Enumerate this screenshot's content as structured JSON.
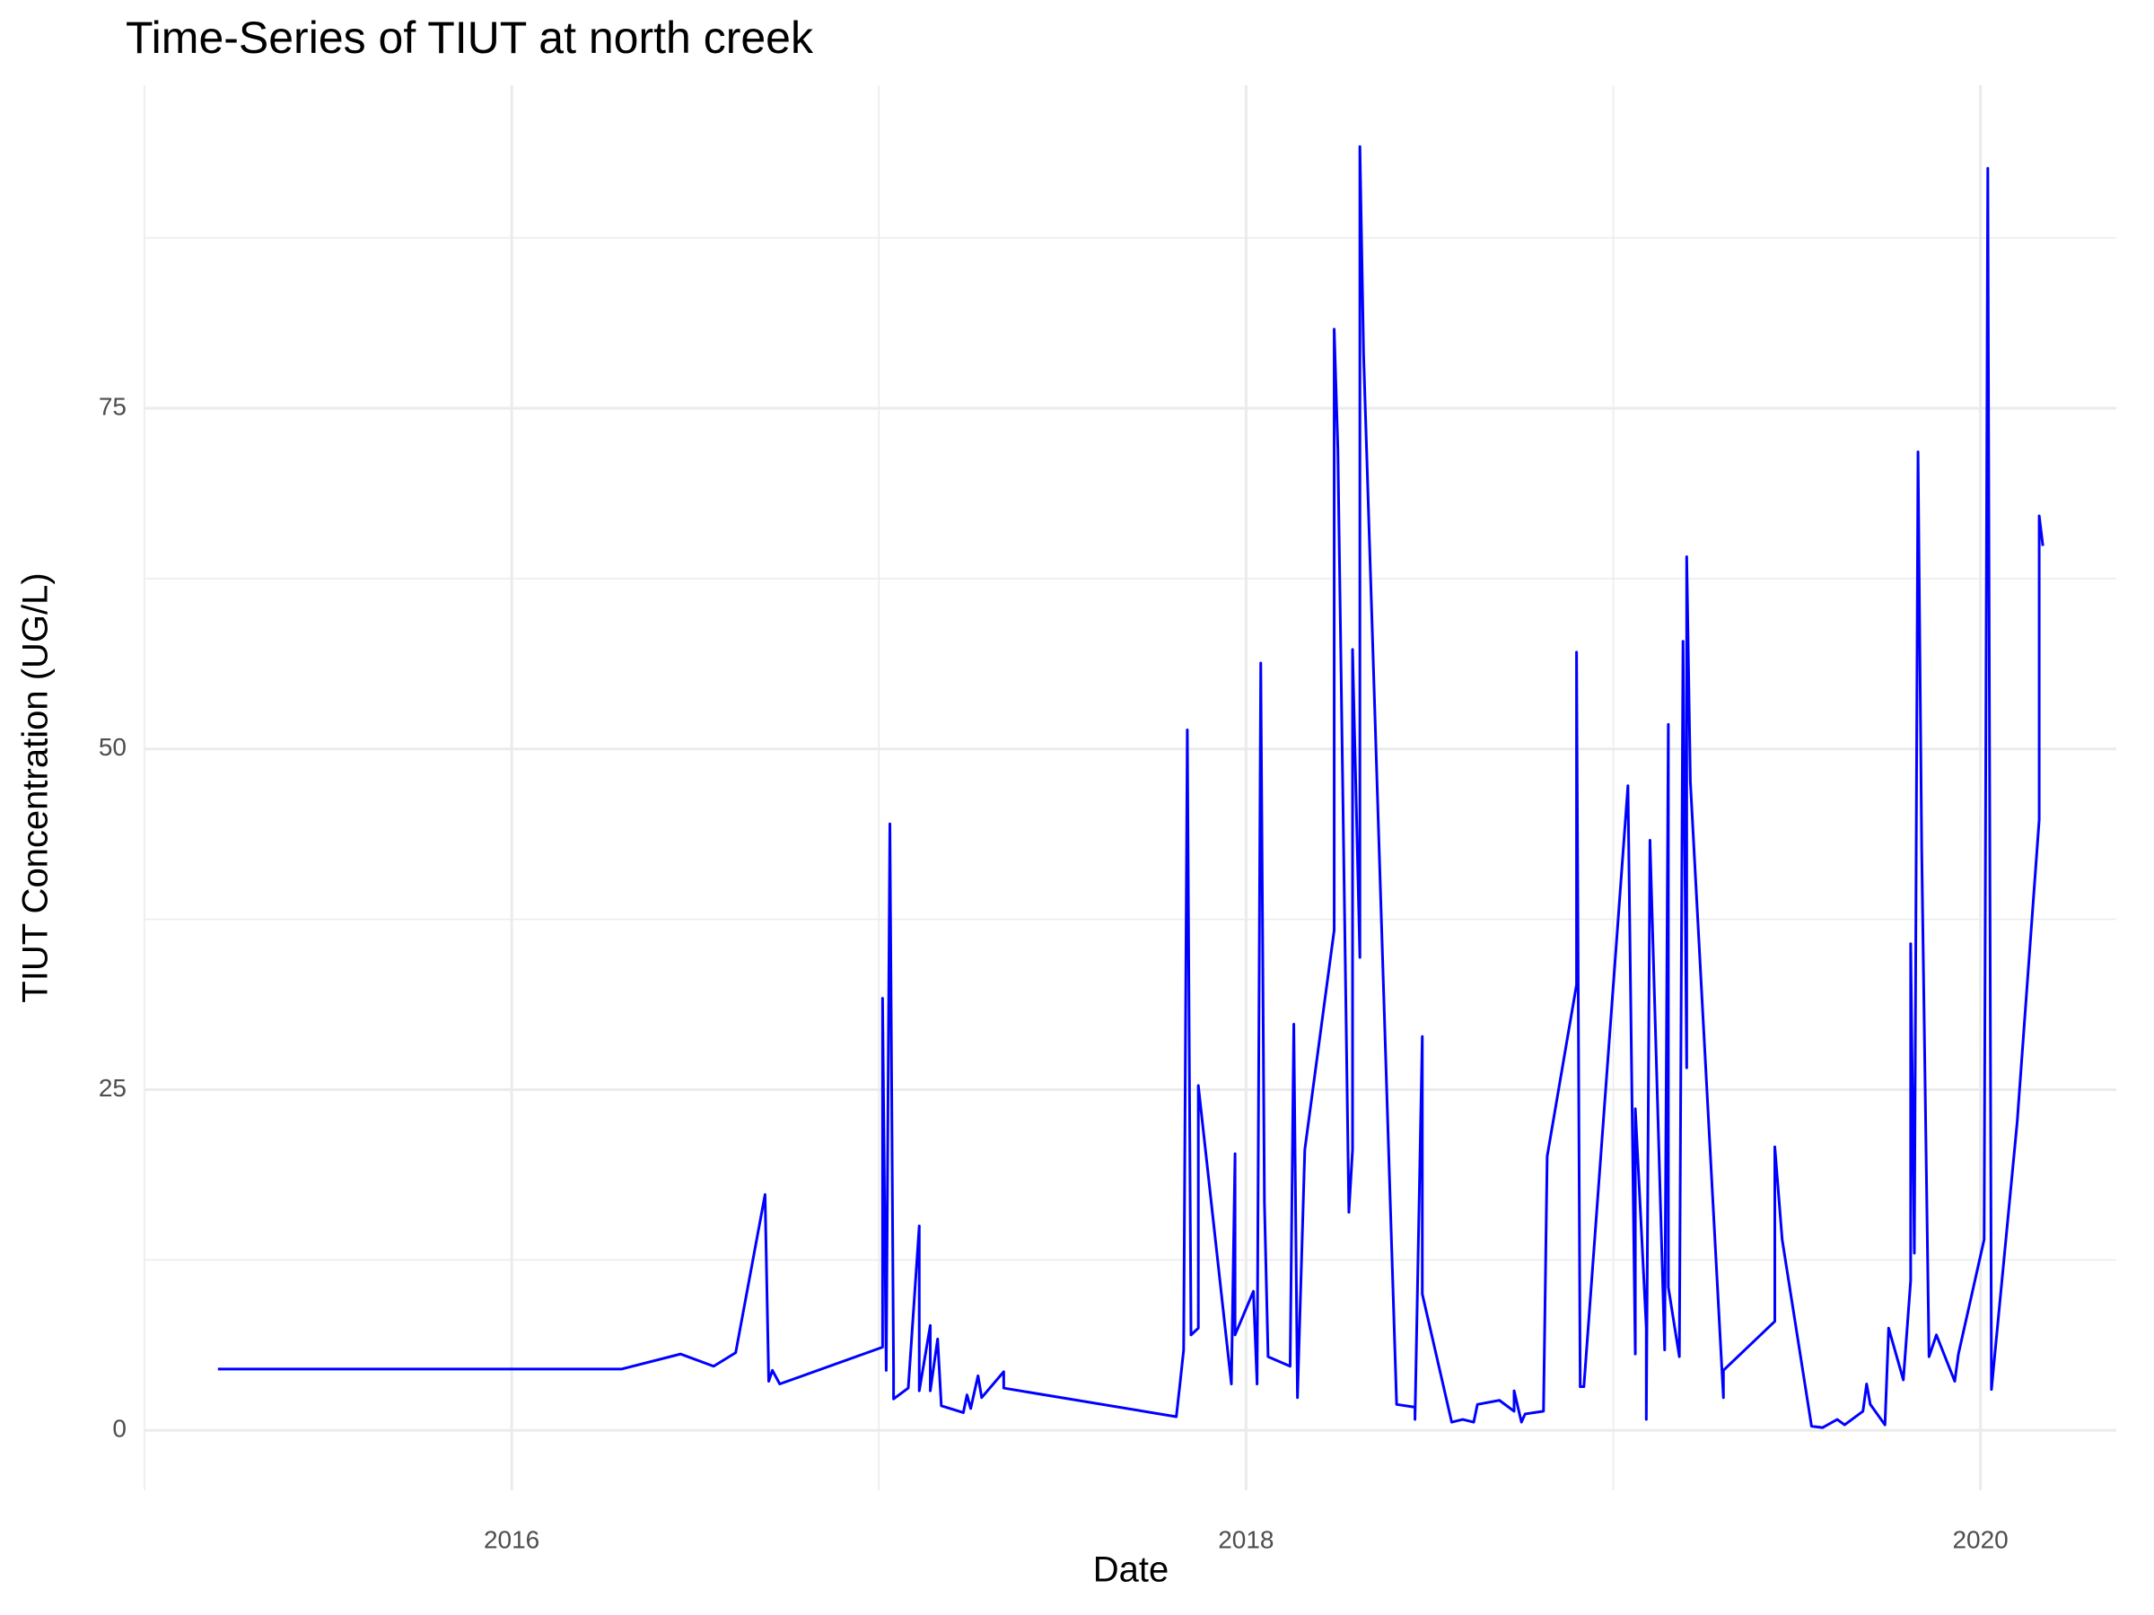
{
  "chart_data": {
    "type": "line",
    "title": "Time-Series of TIUT at north creek",
    "x_label": "Date",
    "y_label": "TIUT Concentration (UG/L)",
    "xlim": [
      2015.0,
      2020.37
    ],
    "ylim": [
      -4.4,
      98.7
    ],
    "xticks": [
      2016,
      2018,
      2020
    ],
    "yticks": [
      0,
      25,
      50,
      75
    ],
    "x_minor_ticks": [
      2015,
      2017,
      2019
    ],
    "y_minor_ticks": [
      12.5,
      37.5,
      62.5,
      87.5
    ],
    "grid": true,
    "series": [
      {
        "color": "#0000ff",
        "x": [
          2015.2,
          2016.3,
          2016.46,
          2016.55,
          2016.61,
          2016.69,
          2016.7,
          2016.71,
          2016.73,
          2017.01,
          2017.01,
          2017.02,
          2017.03,
          2017.04,
          2017.04,
          2017.08,
          2017.11,
          2017.11,
          2017.14,
          2017.14,
          2017.16,
          2017.17,
          2017.23,
          2017.24,
          2017.25,
          2017.27,
          2017.28,
          2017.34,
          2017.34,
          2017.81,
          2017.82,
          2017.83,
          2017.84,
          2017.85,
          2017.87,
          2017.87,
          2017.96,
          2017.97,
          2017.97,
          2018.02,
          2018.03,
          2018.04,
          2018.05,
          2018.06,
          2018.12,
          2018.13,
          2018.14,
          2018.16,
          2018.24,
          2018.24,
          2018.25,
          2018.28,
          2018.29,
          2018.29,
          2018.31,
          2018.31,
          2018.32,
          2018.41,
          2018.46,
          2018.46,
          2018.48,
          2018.48,
          2018.56,
          2018.59,
          2018.62,
          2018.63,
          2018.69,
          2018.73,
          2018.73,
          2018.75,
          2018.76,
          2018.81,
          2018.82,
          2018.9,
          2018.9,
          2018.91,
          2018.92,
          2019.04,
          2019.06,
          2019.06,
          2019.09,
          2019.09,
          2019.1,
          2019.14,
          2019.15,
          2019.15,
          2019.18,
          2019.19,
          2019.2,
          2019.2,
          2019.21,
          2019.3,
          2019.3,
          2019.44,
          2019.44,
          2019.46,
          2019.54,
          2019.57,
          2019.61,
          2019.63,
          2019.68,
          2019.69,
          2019.7,
          2019.74,
          2019.75,
          2019.79,
          2019.81,
          2019.81,
          2019.82,
          2019.83,
          2019.84,
          2019.86,
          2019.88,
          2019.93,
          2019.94,
          2020.01,
          2020.02,
          2020.03,
          2020.1,
          2020.16,
          2020.16,
          2020.17
        ],
        "values": [
          4.5,
          4.5,
          5.6,
          4.7,
          5.7,
          17.3,
          3.6,
          4.4,
          3.4,
          6.1,
          31.7,
          4.4,
          44.5,
          4.4,
          2.3,
          3.1,
          15.0,
          2.9,
          7.7,
          2.9,
          6.7,
          1.8,
          1.3,
          2.6,
          1.6,
          4.0,
          2.4,
          4.3,
          3.1,
          1.0,
          3.4,
          5.9,
          51.4,
          7.0,
          7.5,
          25.3,
          3.4,
          20.3,
          7.0,
          10.2,
          3.4,
          56.3,
          16.7,
          5.4,
          4.7,
          29.8,
          2.4,
          20.6,
          36.7,
          80.8,
          72.0,
          16.0,
          20.6,
          57.3,
          34.7,
          94.2,
          79.0,
          1.9,
          1.7,
          0.8,
          28.9,
          10.0,
          0.6,
          0.8,
          0.6,
          1.9,
          2.2,
          1.4,
          2.9,
          0.6,
          1.2,
          1.4,
          20.1,
          32.7,
          57.1,
          3.2,
          3.2,
          47.3,
          5.6,
          23.6,
          7.5,
          0.8,
          43.3,
          5.9,
          51.8,
          10.5,
          5.4,
          57.9,
          26.6,
          64.1,
          47.6,
          2.4,
          4.4,
          8.0,
          20.8,
          14.0,
          0.3,
          0.2,
          0.8,
          0.4,
          1.4,
          3.4,
          1.9,
          0.4,
          7.5,
          3.7,
          11.0,
          35.7,
          13.0,
          71.8,
          42.7,
          5.4,
          7.0,
          3.6,
          5.6,
          14.0,
          92.6,
          3.0,
          22.6,
          44.8,
          67.1,
          64.9
        ]
      }
    ]
  }
}
